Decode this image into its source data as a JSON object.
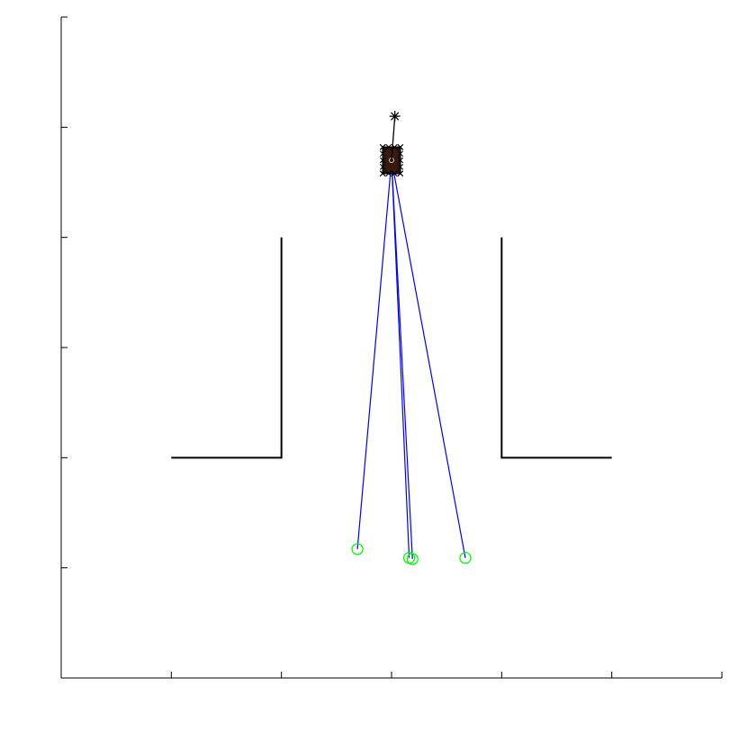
{
  "chart_data": {
    "type": "line",
    "title": "",
    "xlabel": "",
    "ylabel": "",
    "xlim": [
      0,
      6
    ],
    "ylim": [
      0,
      6
    ],
    "xticks": [
      0,
      1,
      2,
      3,
      4,
      5,
      6
    ],
    "yticks": [
      0,
      1,
      2,
      3,
      4,
      5,
      6
    ],
    "tick_labels_shown": false,
    "grid": false,
    "colors": {
      "axis": "#000000",
      "walls": "#000000",
      "rays": "#0000ff",
      "targets": "#00ff00",
      "robot": "#3a1a10",
      "heading": "#000000"
    },
    "walls": [
      {
        "x": [
          1.0,
          2.0,
          2.0
        ],
        "y": [
          2.0,
          2.0,
          4.0
        ]
      },
      {
        "x": [
          4.0,
          4.0,
          5.0
        ],
        "y": [
          4.0,
          2.0,
          2.0
        ]
      }
    ],
    "robot": {
      "center": [
        3.0,
        4.7
      ],
      "width": 0.16,
      "height": 0.24
    },
    "heading_marker": {
      "from": [
        3.0,
        4.7
      ],
      "to": [
        3.03,
        5.1
      ],
      "marker": "asterisk"
    },
    "targets": [
      {
        "x": 2.69,
        "y": 1.17
      },
      {
        "x": 3.16,
        "y": 1.09
      },
      {
        "x": 3.19,
        "y": 1.08
      },
      {
        "x": 3.67,
        "y": 1.09
      }
    ]
  }
}
